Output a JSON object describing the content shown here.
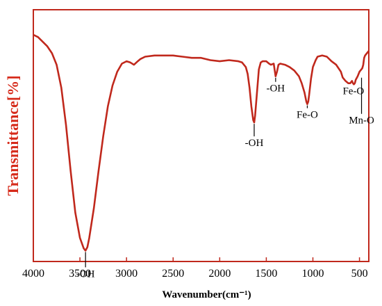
{
  "chart_data": {
    "type": "line",
    "title": "",
    "xlabel": "Wavenumber(cm⁻¹)",
    "ylabel": "Transmittance[%]",
    "xlim": [
      4000,
      400
    ],
    "ylim": [
      0,
      100
    ],
    "x_reversed": true,
    "y_ticks_shown": false,
    "grid": false,
    "xticks": [
      4000,
      3500,
      3000,
      2500,
      2000,
      1500,
      1000,
      500
    ],
    "xtick_labels": [
      "4000",
      "3500",
      "3000",
      "2500",
      "2000",
      "1500",
      "1000",
      "500"
    ],
    "series": [
      {
        "color": "#c0281c",
        "x": [
          4000,
          3950,
          3900,
          3850,
          3800,
          3750,
          3700,
          3650,
          3600,
          3550,
          3500,
          3460,
          3440,
          3420,
          3400,
          3350,
          3300,
          3250,
          3200,
          3150,
          3100,
          3050,
          3000,
          2960,
          2920,
          2880,
          2850,
          2800,
          2700,
          2600,
          2500,
          2400,
          2300,
          2200,
          2100,
          2000,
          1900,
          1800,
          1760,
          1720,
          1700,
          1680,
          1660,
          1640,
          1630,
          1620,
          1600,
          1580,
          1560,
          1540,
          1500,
          1470,
          1450,
          1420,
          1400,
          1385,
          1370,
          1350,
          1300,
          1250,
          1200,
          1150,
          1120,
          1090,
          1070,
          1060,
          1050,
          1040,
          1020,
          1000,
          970,
          950,
          900,
          850,
          800,
          750,
          700,
          680,
          650,
          620,
          600,
          580,
          570,
          560,
          550,
          540,
          520,
          500,
          480,
          470,
          460,
          450,
          440,
          420,
          400
        ],
        "y": [
          97,
          96,
          94,
          92,
          89,
          84,
          74,
          58,
          38,
          20,
          9,
          4.5,
          3.5,
          5,
          9,
          22,
          38,
          53,
          66,
          75,
          81,
          84.5,
          85.5,
          85,
          84,
          85.5,
          86.5,
          87.5,
          88,
          88,
          88,
          87.5,
          87,
          87,
          86,
          85.5,
          86,
          85.5,
          85,
          83,
          80,
          74,
          66,
          60,
          59,
          62,
          72,
          82,
          85,
          85.5,
          85.5,
          84.5,
          84,
          84.5,
          79,
          81,
          84,
          84.5,
          84,
          83,
          81.5,
          79,
          76,
          72,
          68,
          67,
          68,
          71,
          78,
          83,
          86,
          87.5,
          88,
          87.5,
          85.5,
          84,
          81,
          78.5,
          77,
          76,
          76,
          77,
          76,
          75.5,
          76,
          77.5,
          79,
          81,
          82,
          82.5,
          84,
          87,
          88,
          89,
          90
        ]
      }
    ],
    "annotations": [
      {
        "text": "-OH",
        "x": 3440,
        "y": 3.5
      },
      {
        "text": "-OH",
        "x": 1630,
        "y": 59
      },
      {
        "text": "-OH",
        "x": 1400,
        "y": 79
      },
      {
        "text": "Fe-O",
        "x": 1060,
        "y": 67
      },
      {
        "text": "Fe-O",
        "x": 565,
        "y": 76
      },
      {
        "text": "Mn-O",
        "x": 478,
        "y": 79
      }
    ]
  }
}
